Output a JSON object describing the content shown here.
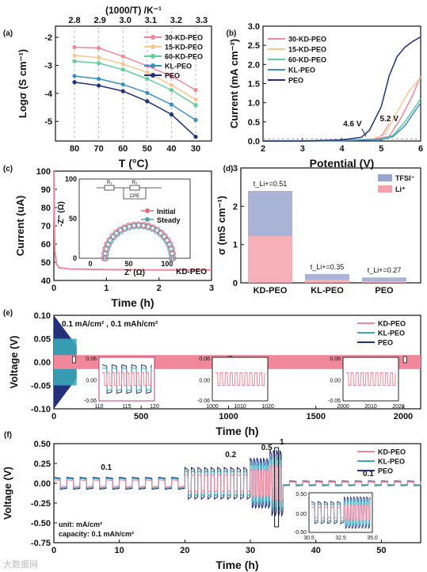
{
  "chart_data": [
    {
      "id": "a",
      "panel_label": "(a)",
      "type": "line",
      "xlabel": "T (°C)",
      "ylabel": "Logσ (S cm⁻¹)",
      "x2label": "(1000/T) /K⁻¹",
      "x": [
        80,
        70,
        60,
        50,
        40,
        30
      ],
      "xticks": [
        "80",
        "70",
        "60",
        "50",
        "40",
        "30"
      ],
      "x2ticks": [
        "2.8",
        "2.9",
        "3.0",
        "3.1",
        "3.2",
        "3.3"
      ],
      "yticks": [
        "-2",
        "-3",
        "-4",
        "-5"
      ],
      "ylim": [
        -5.7,
        -1.6
      ],
      "series": [
        {
          "name": "30-KD-PEO",
          "color": "#f0879a",
          "values": [
            -2.35,
            -2.38,
            -2.68,
            -3.02,
            -3.38,
            -3.88
          ]
        },
        {
          "name": "15-KD-PEO",
          "color": "#f5c890",
          "values": [
            -2.65,
            -2.72,
            -2.95,
            -3.25,
            -3.7,
            -4.22
          ]
        },
        {
          "name": "60-KD-PEO",
          "color": "#5fcf9a",
          "values": [
            -2.85,
            -2.92,
            -3.15,
            -3.48,
            -3.88,
            -4.42
          ]
        },
        {
          "name": "KL-PEO",
          "color": "#3a8fc8",
          "values": [
            -3.38,
            -3.48,
            -3.68,
            -3.98,
            -4.4,
            -4.95
          ]
        },
        {
          "name": "PEO",
          "color": "#23307a",
          "values": [
            -3.6,
            -3.72,
            -3.92,
            -4.28,
            -4.75,
            -5.55
          ]
        }
      ]
    },
    {
      "id": "b",
      "panel_label": "(b)",
      "type": "line",
      "xlabel": "Potential (V)",
      "ylabel": "Current (mA cm⁻²)",
      "xlim": [
        2,
        6
      ],
      "ylim": [
        0,
        3
      ],
      "xticks": [
        "2",
        "3",
        "4",
        "5",
        "6"
      ],
      "yticks": [
        "0.0",
        "0.5",
        "1.0",
        "1.5",
        "2.0",
        "2.5",
        "3.0"
      ],
      "annotations": [
        {
          "text": "4.6 V",
          "color": "#2a3e8f"
        },
        {
          "text": "5.2 V",
          "color": "#f0879a"
        }
      ],
      "series": [
        {
          "name": "30-KD-PEO",
          "color": "#f0879a",
          "x": [
            2,
            3,
            4,
            4.8,
            5.2,
            5.5,
            5.8,
            6
          ],
          "y": [
            0,
            0,
            0.02,
            0.05,
            0.12,
            0.6,
            1.2,
            1.7
          ]
        },
        {
          "name": "15-KD-PEO",
          "color": "#f5c890",
          "x": [
            2,
            3,
            4,
            4.8,
            5.1,
            5.4,
            5.7,
            6
          ],
          "y": [
            0,
            0,
            0.02,
            0.06,
            0.18,
            0.75,
            1.3,
            1.65
          ]
        },
        {
          "name": "60-KD-PEO",
          "color": "#5fcf9a",
          "x": [
            2,
            3,
            4,
            5,
            5.3,
            5.6,
            5.8,
            6
          ],
          "y": [
            0,
            0,
            0.01,
            0.05,
            0.15,
            0.5,
            0.8,
            1.1
          ]
        },
        {
          "name": "KL-PEO",
          "color": "#3a8fc8",
          "x": [
            2,
            3,
            4,
            5,
            5.3,
            5.6,
            5.8,
            6
          ],
          "y": [
            0,
            0,
            0.01,
            0.04,
            0.12,
            0.4,
            0.7,
            1.0
          ]
        },
        {
          "name": "PEO",
          "color": "#23307a",
          "x": [
            2,
            3,
            4,
            4.5,
            4.7,
            5.0,
            5.2,
            5.4,
            5.6,
            5.8,
            6
          ],
          "y": [
            0,
            0,
            0.03,
            0.1,
            0.28,
            0.9,
            1.7,
            2.2,
            2.45,
            2.6,
            2.72
          ]
        }
      ]
    },
    {
      "id": "c",
      "panel_label": "(c)",
      "type": "line",
      "xlabel": "Time (h)",
      "ylabel": "Current (uA)",
      "xlim": [
        0,
        3
      ],
      "ylim": [
        40,
        100
      ],
      "xticks": [
        "0",
        "1",
        "2",
        "3"
      ],
      "yticks": [
        "40",
        "50",
        "60",
        "70",
        "80",
        "90",
        "100"
      ],
      "sample_label": "KD-PEO",
      "series": [
        {
          "name": "KD-PEO",
          "color": "#f0879a",
          "x": [
            0,
            0.01,
            0.02,
            0.05,
            0.1,
            0.3,
            1,
            2,
            3
          ],
          "y": [
            100,
            72,
            56,
            49,
            47,
            46.3,
            46,
            45.8,
            45.8
          ]
        }
      ],
      "inset": {
        "xlabel": "Z' (Ω)",
        "ylabel": "-Z'' (Ω)",
        "xticks": [
          "0",
          "50",
          "100"
        ],
        "yticks": [
          "0",
          "50",
          "100"
        ],
        "circuit_labels": [
          "R₁",
          "R₂",
          "CPE"
        ],
        "legend": [
          {
            "name": "Initial",
            "color": "#e26a80"
          },
          {
            "name": "Steady",
            "color": "#5a9fb3"
          }
        ]
      }
    },
    {
      "id": "d",
      "panel_label": "(d)",
      "type": "bar",
      "ylabel": "σ (mS cm⁻¹)",
      "categories": [
        "KD-PEO",
        "KL-PEO",
        "PEO"
      ],
      "yticks": [
        "0",
        "1",
        "2",
        "3"
      ],
      "ylim": [
        0,
        3
      ],
      "series": [
        {
          "name": "TFSI⁻",
          "color": "#9aa6cf",
          "values": [
            1.18,
            0.15,
            0.1
          ]
        },
        {
          "name": "Li⁺",
          "color": "#f4a2ac",
          "values": [
            1.22,
            0.08,
            0.04
          ]
        }
      ],
      "annotations": [
        "t_Li+=0.51",
        "t_Li+=0.35",
        "t_Li+=0.27"
      ]
    },
    {
      "id": "e",
      "panel_label": "(e)",
      "type": "line",
      "xlabel": "Time (h)",
      "ylabel": "Voltage (V)",
      "xlim": [
        0,
        2100
      ],
      "ylim": [
        -0.1,
        0.1
      ],
      "xticks": [
        "0",
        "500",
        "1000",
        "1500",
        "2000"
      ],
      "yticks": [
        "0.10",
        "0.05",
        "0.00",
        "-0.05",
        "-0.10"
      ],
      "condition_text": "0.1 mA/cm² , 0.1 mAh/cm²",
      "series": [
        {
          "name": "KD-PEO",
          "color": "#f0879a",
          "end_h": 2100,
          "amplitude": 0.015
        },
        {
          "name": "KL-PEO",
          "color": "#3aa8b8",
          "end_h": 130,
          "amplitude": 0.05
        },
        {
          "name": "PEO",
          "color": "#23307a",
          "end_h": 130,
          "amplitude": 0.1
        }
      ],
      "insets": [
        {
          "xticks": [
            "110",
            "115",
            "120"
          ],
          "yticks": [
            "0.06",
            "0.00",
            "-0.06"
          ]
        },
        {
          "xticks": [
            "1000",
            "1010",
            "1020"
          ],
          "yticks": [
            "0.06",
            "0.00",
            "-0.06"
          ]
        },
        {
          "xticks": [
            "2000",
            "2010",
            "2020"
          ],
          "yticks": [
            "0.06",
            "0.00",
            "-0.06"
          ]
        }
      ]
    },
    {
      "id": "f",
      "panel_label": "(f)",
      "type": "line",
      "xlabel": "Time (h)",
      "ylabel": "Voltage (V)",
      "xlim": [
        0,
        56
      ],
      "ylim": [
        -0.75,
        0.5
      ],
      "xticks": [
        "0",
        "10",
        "20",
        "30",
        "40",
        "50"
      ],
      "yticks": [
        "0.50",
        "0.25",
        "0.00",
        "-0.25",
        "-0.50",
        "-0.75"
      ],
      "rate_labels": [
        "0.1",
        "0.2",
        "0.5",
        "1",
        "0.1"
      ],
      "note_lines": [
        "unit: mA/cm²",
        "capacity: 0.1 mAh/cm²"
      ],
      "series": [
        {
          "name": "KD-PEO",
          "color": "#f0879a"
        },
        {
          "name": "KL-PEO",
          "color": "#3aa8b8"
        },
        {
          "name": "PEO",
          "color": "#23307a"
        }
      ],
      "inset": {
        "xticks": [
          "30.5",
          "32.5",
          "35.0"
        ],
        "yticks": [
          "0.50",
          "0.00",
          "-0.50"
        ]
      }
    }
  ],
  "watermark": "大数据网"
}
